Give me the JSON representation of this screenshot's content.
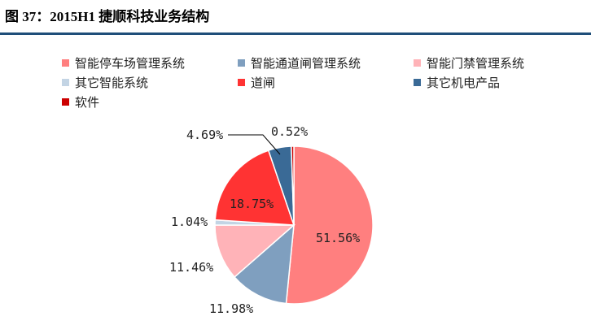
{
  "figure_title": "图 37：2015H1 捷顺科技业务结构",
  "chart_data": {
    "type": "pie",
    "title": "",
    "legend_position": "top",
    "start_angle_deg": 0,
    "direction": "clockwise",
    "series": [
      {
        "name": "智能停车场管理系统",
        "value": 51.56,
        "label": "51.56%",
        "color": "#ff7f7f"
      },
      {
        "name": "智能通道闸管理系统",
        "value": 11.98,
        "label": "11.98%",
        "color": "#7f9fbf"
      },
      {
        "name": "智能门禁管理系统",
        "value": 11.46,
        "label": "11.46%",
        "color": "#ffb3b8"
      },
      {
        "name": "其它智能系统",
        "value": 1.04,
        "label": "1.04%",
        "color": "#c3d4e4"
      },
      {
        "name": "道闸",
        "value": 18.75,
        "label": "18.75%",
        "color": "#ff3333"
      },
      {
        "name": "其它机电产品",
        "value": 4.69,
        "label": "4.69%",
        "color": "#3a6a96"
      },
      {
        "name": "软件",
        "value": 0.52,
        "label": "0.52%",
        "color": "#cc0000"
      }
    ]
  }
}
